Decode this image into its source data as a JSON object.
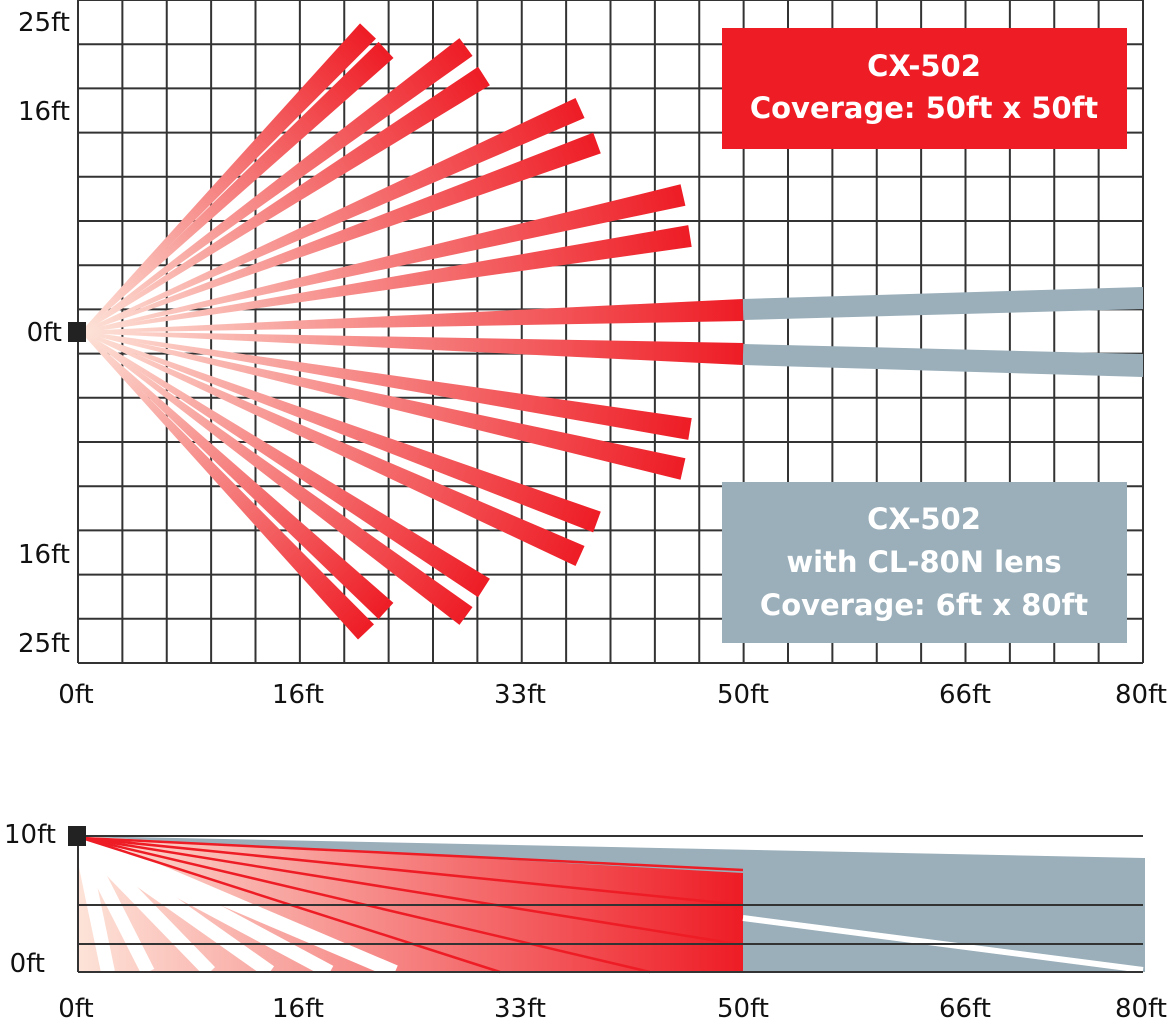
{
  "top_view": {
    "y_ticks": [
      "25ft",
      "16ft",
      "0ft",
      "16ft",
      "25ft"
    ],
    "x_ticks": [
      "0ft",
      "16ft",
      "33ft",
      "50ft",
      "66ft",
      "80ft"
    ]
  },
  "side_view": {
    "y_ticks": [
      "10ft",
      "0ft"
    ],
    "x_ticks": [
      "0ft",
      "16ft",
      "33ft",
      "50ft",
      "66ft",
      "80ft"
    ]
  },
  "legend": {
    "standard": {
      "lines": [
        "CX-502",
        "Coverage: 50ft x 50ft"
      ],
      "color": "#ee1c25"
    },
    "long_range": {
      "lines": [
        "CX-502",
        "with CL-80N lens",
        "Coverage: 6ft x 80ft"
      ],
      "color": "#9aafba"
    }
  },
  "colors": {
    "beam_far": "#ee1c25",
    "beam_near": "#fde3d8",
    "long_range_beam": "#9aafba",
    "grid": "#333333",
    "sensor": "#222222"
  }
}
